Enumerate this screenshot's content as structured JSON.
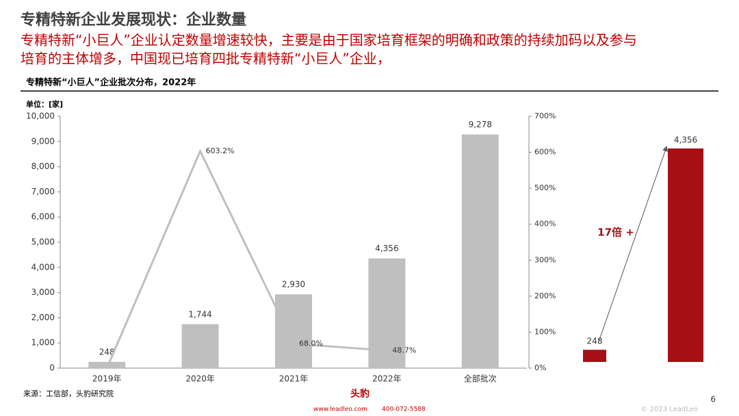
{
  "header": {
    "title": "专精特新企业发展现状：企业数量",
    "subtitle": [
      "专精特新“小巨人”企业认定数量增速较快，主要是由于国家培育框架的明确和政策的持续加码以及参与",
      "培育的主体增多，中国现已培育四批专精特新“小巨人”企业，"
    ]
  },
  "chart_data": [
    {
      "type": "bar",
      "title": "专精特新“小巨人”企业批次分布，2022年",
      "y_label": "单位：[家]",
      "categories": [
        "2019年",
        "2020年",
        "2021年",
        "2022年",
        "全部批次"
      ],
      "series": [
        {
          "color": "#bfbfbf",
          "values": [
            248,
            1744,
            2930,
            4356,
            9278
          ],
          "value_labels": [
            "248",
            "1,744",
            "2,930",
            "4,356",
            "9,278"
          ]
        },
        {
          "type": "line",
          "axis": "y2",
          "color": "#bfbfbf",
          "values": [
            0,
            603.2,
            68.0,
            48.7,
            null
          ],
          "value_labels": [
            null,
            "603.2%",
            "68.0%",
            "48.7%",
            null
          ]
        }
      ],
      "ylim": [
        0,
        10000
      ],
      "yticks": [
        0,
        {
          "value": 1000,
          "label": "1,000"
        },
        {
          "value": 2000,
          "label": "2,000"
        },
        {
          "value": 3000,
          "label": "3,000"
        },
        {
          "value": 4000,
          "label": "4,000"
        },
        {
          "value": 5000,
          "label": "5,000"
        },
        {
          "value": 6000,
          "label": "6,000"
        },
        {
          "value": 7000,
          "label": "7,000"
        },
        {
          "value": 8000,
          "label": "8,000"
        },
        {
          "value": 9000,
          "label": "9,000"
        },
        {
          "value": 10000,
          "label": "10,000"
        }
      ],
      "y2lim": [
        0,
        700
      ],
      "y2ticks": [
        {
          "value": 0,
          "label": "0%"
        },
        {
          "value": 100,
          "label": "100%"
        },
        {
          "value": 200,
          "label": "200%"
        },
        {
          "value": 300,
          "label": "300%"
        },
        {
          "value": 400,
          "label": "400%"
        },
        {
          "value": 500,
          "label": "500%"
        },
        {
          "value": 600,
          "label": "600%"
        },
        {
          "value": 700,
          "label": "700%"
        }
      ]
    },
    {
      "type": "bar",
      "categories": [
        null,
        null
      ],
      "values": [
        248,
        4356
      ],
      "value_labels": [
        "248",
        "4,356"
      ],
      "color": "#a50f15",
      "annotation": "17倍 +"
    }
  ],
  "footer": {
    "source": "来源：工信部，头豹研究院",
    "page": "6",
    "logo": "头豹",
    "website": "www.leadleo.com",
    "phone": "400-072-5588",
    "copyright": "© 2023 LeadLeo"
  }
}
